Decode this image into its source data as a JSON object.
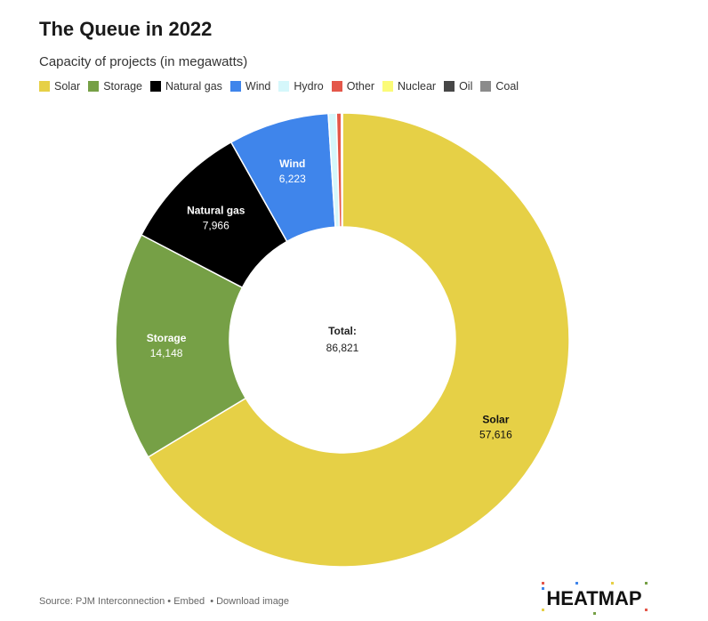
{
  "title": "The Queue in 2022",
  "subtitle": "Capacity of projects (in megawatts)",
  "chart_data": {
    "type": "pie",
    "donut": true,
    "title": "The Queue in 2022",
    "subtitle": "Capacity of projects (in megawatts)",
    "legend_position": "top-left",
    "categories": [
      "Solar",
      "Storage",
      "Natural gas",
      "Wind",
      "Hydro",
      "Other",
      "Nuclear",
      "Oil",
      "Coal"
    ],
    "values": [
      57616,
      14148,
      7966,
      6223,
      500,
      300,
      40,
      20,
      8
    ],
    "labels": [
      {
        "name": "Solar",
        "value_text": "57,616"
      },
      {
        "name": "Storage",
        "value_text": "14,148"
      },
      {
        "name": "Natural gas",
        "value_text": "7,966"
      },
      {
        "name": "Wind",
        "value_text": "6,223"
      }
    ],
    "colors": [
      "#e6d046",
      "#76a046",
      "#000000",
      "#3f85eb",
      "#d5f7fb",
      "#e4574a",
      "#fbfb78",
      "#474747",
      "#8b8b8b"
    ],
    "center_label": "Total:",
    "center_value": "86,821"
  },
  "footer": {
    "source": "Source: PJM Interconnection",
    "sep1": " • ",
    "embed": "Embed",
    "sep2": "  • ",
    "download": "Download image"
  },
  "logo": {
    "text": "HEATMAP",
    "dot_colors": [
      "#e4574a",
      "#3f85eb",
      "#e6d046",
      "#76a046",
      "#e4574a",
      "#3f85eb",
      "#e6d046",
      "#76a046"
    ]
  }
}
